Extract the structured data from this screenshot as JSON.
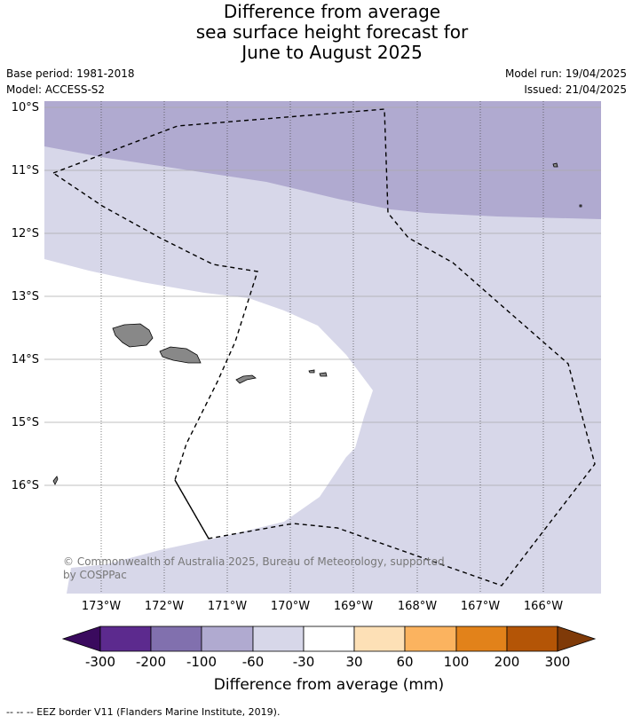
{
  "title_lines": [
    "Difference from average",
    "sea surface height forecast for",
    "June to August 2025"
  ],
  "meta_left": {
    "base_period": "Base period: 1981-2018",
    "model": "Model: ACCESS-S2"
  },
  "meta_right": {
    "model_run": "Model run: 19/04/2025",
    "issued": "Issued: 21/04/2025"
  },
  "map": {
    "lat_labels": [
      "10°S",
      "11°S",
      "12°S",
      "13°S",
      "14°S",
      "15°S",
      "16°S"
    ],
    "lon_labels": [
      "173°W",
      "172°W",
      "171°W",
      "170°W",
      "169°W",
      "168°W",
      "167°W",
      "166°W"
    ],
    "copyright": "© Commonwealth of Australia 2025, Bureau of Meteorology, supported by COSPPac",
    "colors": {
      "band_minus100_minus60": "#b0aad0",
      "band_minus60_minus30": "#d7d7e9",
      "band_minus30_30": "#ffffff",
      "land": "#888888",
      "eez_border": "#000000"
    }
  },
  "colorbar": {
    "ticks": [
      "-300",
      "-200",
      "-100",
      "-60",
      "-30",
      "30",
      "60",
      "100",
      "200",
      "300"
    ],
    "colors": [
      "#3a0a5e",
      "#5c2a8e",
      "#8170ae",
      "#b0aad0",
      "#d7d7e9",
      "#ffffff",
      "#fde0b6",
      "#fbb35f",
      "#e2821a",
      "#b45506",
      "#7f3a08"
    ],
    "title": "Difference from average (mm)"
  },
  "footer": "--  --  -- EEZ border V11 (Flanders Marine Institute, 2019)."
}
